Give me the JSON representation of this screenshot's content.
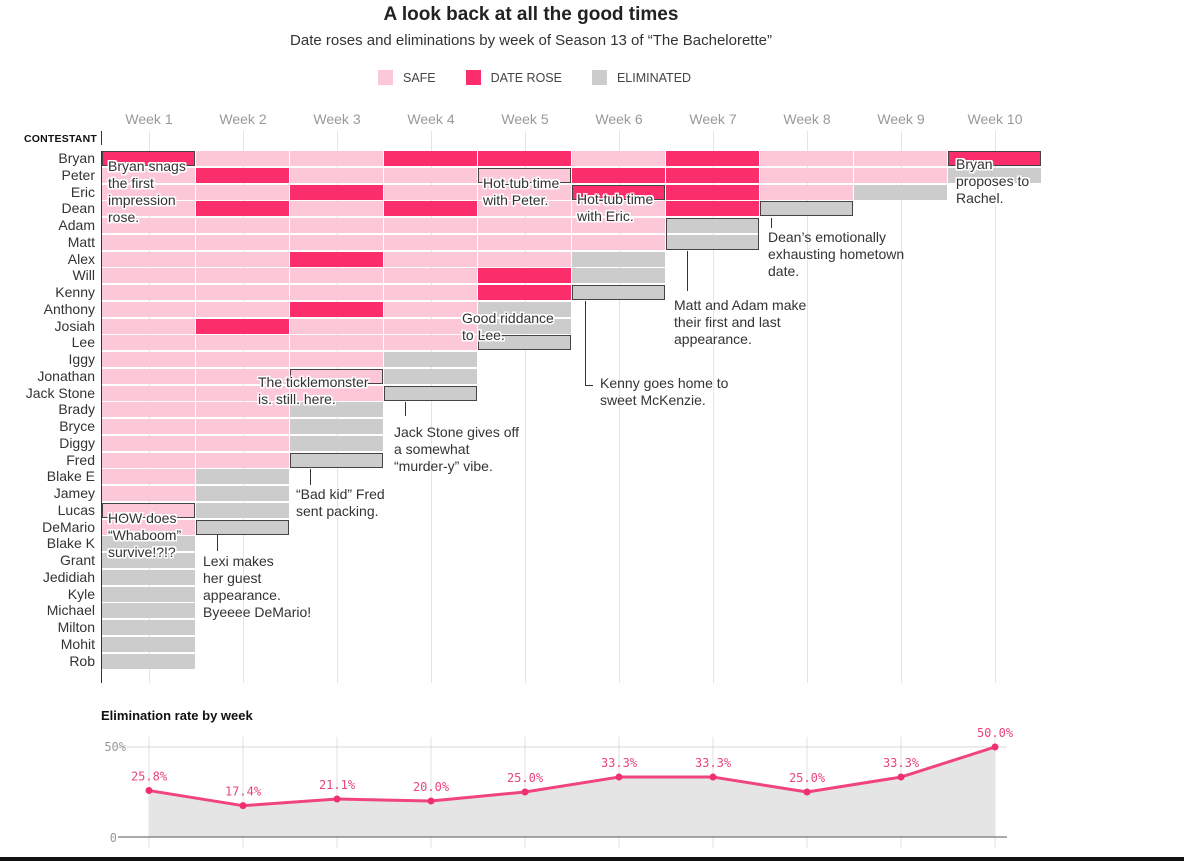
{
  "title": "A look back at all the good times",
  "subtitle": "Date roses and eliminations by week of Season 13 of “The Bachelorette”",
  "colors": {
    "safe": "#fcc8d8",
    "date_rose": "#fb2d6b",
    "eliminated": "#cccccc",
    "line": "#f0457c",
    "area": "#e5e5e5",
    "label": "#e8457e"
  },
  "legend": [
    {
      "key": "safe",
      "label": "SAFE"
    },
    {
      "key": "date_rose",
      "label": "DATE ROSE"
    },
    {
      "key": "eliminated",
      "label": "ELIMINATED"
    }
  ],
  "contestant_header": "CONTESTANT",
  "weeks": [
    "Week 1",
    "Week 2",
    "Week 3",
    "Week 4",
    "Week 5",
    "Week 6",
    "Week 7",
    "Week 8",
    "Week 9",
    "Week 10"
  ],
  "chart_data": [
    {
      "type": "heatmap",
      "title": "A look back at all the good times",
      "subtitle": "Date roses and eliminations by week of Season 13 of “The Bachelorette”",
      "x": [
        "Week 1",
        "Week 2",
        "Week 3",
        "Week 4",
        "Week 5",
        "Week 6",
        "Week 7",
        "Week 8",
        "Week 9",
        "Week 10"
      ],
      "ylabel": "CONTESTANT",
      "legend_position": "top",
      "categories_legend": {
        "S": "SAFE",
        "R": "DATE ROSE",
        "E": "ELIMINATED"
      },
      "rows": [
        {
          "name": "Bryan",
          "status": [
            "R",
            "S",
            "S",
            "R",
            "R",
            "S",
            "R",
            "S",
            "S",
            "R"
          ]
        },
        {
          "name": "Peter",
          "status": [
            "S",
            "R",
            "S",
            "S",
            "S",
            "R",
            "R",
            "S",
            "S",
            "E"
          ]
        },
        {
          "name": "Eric",
          "status": [
            "S",
            "S",
            "R",
            "S",
            "S",
            "R",
            "R",
            "S",
            "E"
          ]
        },
        {
          "name": "Dean",
          "status": [
            "S",
            "R",
            "S",
            "R",
            "S",
            "S",
            "R",
            "E"
          ]
        },
        {
          "name": "Adam",
          "status": [
            "S",
            "S",
            "S",
            "S",
            "S",
            "S",
            "E"
          ]
        },
        {
          "name": "Matt",
          "status": [
            "S",
            "S",
            "S",
            "S",
            "S",
            "S",
            "E"
          ]
        },
        {
          "name": "Alex",
          "status": [
            "S",
            "S",
            "R",
            "S",
            "S",
            "E"
          ]
        },
        {
          "name": "Will",
          "status": [
            "S",
            "S",
            "S",
            "S",
            "R",
            "E"
          ]
        },
        {
          "name": "Kenny",
          "status": [
            "S",
            "S",
            "S",
            "S",
            "R",
            "E"
          ]
        },
        {
          "name": "Anthony",
          "status": [
            "S",
            "S",
            "R",
            "S",
            "E"
          ]
        },
        {
          "name": "Josiah",
          "status": [
            "S",
            "R",
            "S",
            "S",
            "E"
          ]
        },
        {
          "name": "Lee",
          "status": [
            "S",
            "S",
            "S",
            "S",
            "E"
          ]
        },
        {
          "name": "Iggy",
          "status": [
            "S",
            "S",
            "S",
            "E"
          ]
        },
        {
          "name": "Jonathan",
          "status": [
            "S",
            "S",
            "S",
            "E"
          ]
        },
        {
          "name": "Jack Stone",
          "status": [
            "S",
            "S",
            "S",
            "E"
          ]
        },
        {
          "name": "Brady",
          "status": [
            "S",
            "S",
            "E"
          ]
        },
        {
          "name": "Bryce",
          "status": [
            "S",
            "S",
            "E"
          ]
        },
        {
          "name": "Diggy",
          "status": [
            "S",
            "S",
            "E"
          ]
        },
        {
          "name": "Fred",
          "status": [
            "S",
            "S",
            "E"
          ]
        },
        {
          "name": "Blake E",
          "status": [
            "S",
            "E"
          ]
        },
        {
          "name": "Jamey",
          "status": [
            "S",
            "E"
          ]
        },
        {
          "name": "Lucas",
          "status": [
            "S",
            "E"
          ]
        },
        {
          "name": "DeMario",
          "status": [
            "S",
            "E"
          ]
        },
        {
          "name": "Blake K",
          "status": [
            "E"
          ]
        },
        {
          "name": "Grant",
          "status": [
            "E"
          ]
        },
        {
          "name": "Jedidiah",
          "status": [
            "E"
          ]
        },
        {
          "name": "Kyle",
          "status": [
            "E"
          ]
        },
        {
          "name": "Michael",
          "status": [
            "E"
          ]
        },
        {
          "name": "Milton",
          "status": [
            "E"
          ]
        },
        {
          "name": "Mohit",
          "status": [
            "E"
          ]
        },
        {
          "name": "Rob",
          "status": [
            "E"
          ]
        }
      ],
      "highlighted_cells": [
        {
          "row": "Bryan",
          "week": 1
        },
        {
          "row": "Lucas",
          "week": 1
        },
        {
          "row": "DeMario",
          "week": 2
        },
        {
          "row": "Jonathan",
          "week": 3
        },
        {
          "row": "Fred",
          "week": 3
        },
        {
          "row": "Jack Stone",
          "week": 4
        },
        {
          "row": "Peter",
          "week": 5
        },
        {
          "row": "Lee",
          "week": 5
        },
        {
          "row": "Eric",
          "week": 6
        },
        {
          "row": "Kenny",
          "week": 6
        },
        {
          "row": "Adam",
          "week": 7,
          "span_rows": 2
        },
        {
          "row": "Dean",
          "week": 8
        },
        {
          "row": "Bryan",
          "week": 10
        }
      ],
      "annotations": [
        {
          "text": "Bryan snags the first impression rose.",
          "lines": [
            "Bryan snags",
            "the first",
            "impression",
            "rose."
          ]
        },
        {
          "text": "HOW does “Whaboom” survive!?!?",
          "lines": [
            "HOW does",
            "“Whaboom”",
            "survive!?!?"
          ]
        },
        {
          "text": "Lexi makes her guest appearance. Byeeee DeMario!",
          "lines": [
            "Lexi makes",
            "her guest",
            "appearance.",
            "Byeeee DeMario!"
          ]
        },
        {
          "text": "The ticklemonster is. still. here.",
          "lines": [
            "The ticklemonster",
            "is. still. here."
          ]
        },
        {
          "text": "“Bad kid” Fred sent packing.",
          "lines": [
            "“Bad kid” Fred",
            "sent packing."
          ]
        },
        {
          "text": "Jack Stone gives off a somewhat “murder-y” vibe.",
          "lines": [
            "Jack Stone gives off",
            "a somewhat",
            "“murder-y” vibe."
          ]
        },
        {
          "text": "Hot-tub time with Peter.",
          "lines": [
            "Hot-tub time",
            "with Peter."
          ]
        },
        {
          "text": "Good riddance to Lee.",
          "lines": [
            "Good riddance",
            "to Lee."
          ]
        },
        {
          "text": "Hot-tub time with Eric.",
          "lines": [
            "Hot-tub time",
            "with Eric."
          ]
        },
        {
          "text": "Kenny goes home to sweet McKenzie.",
          "lines": [
            "Kenny goes home to",
            "sweet McKenzie."
          ]
        },
        {
          "text": "Matt and Adam make their first and last appearance.",
          "lines": [
            "Matt and Adam make",
            "their first and last",
            "appearance."
          ]
        },
        {
          "text": "Dean’s emotionally exhausting hometown date.",
          "lines": [
            "Dean’s emotionally",
            "exhausting hometown",
            "date."
          ]
        },
        {
          "text": "Bryan proposes to Rachel.",
          "lines": [
            "Bryan",
            "proposes to",
            "Rachel."
          ]
        }
      ]
    },
    {
      "type": "area",
      "title": "Elimination rate by week",
      "x": [
        "Week 1",
        "Week 2",
        "Week 3",
        "Week 4",
        "Week 5",
        "Week 6",
        "Week 7",
        "Week 8",
        "Week 9",
        "Week 10"
      ],
      "values": [
        25.8,
        17.4,
        21.1,
        20.0,
        25.0,
        33.3,
        33.3,
        25.0,
        33.3,
        50.0
      ],
      "data_labels": [
        "25.8%",
        "17.4%",
        "21.1%",
        "20.0%",
        "25.0%",
        "33.3%",
        "33.3%",
        "25.0%",
        "33.3%",
        "50.0%"
      ],
      "yticks": [
        "0",
        "50%"
      ],
      "ylim": [
        0,
        50
      ],
      "xlabel": "",
      "ylabel": "",
      "grid": true
    }
  ]
}
